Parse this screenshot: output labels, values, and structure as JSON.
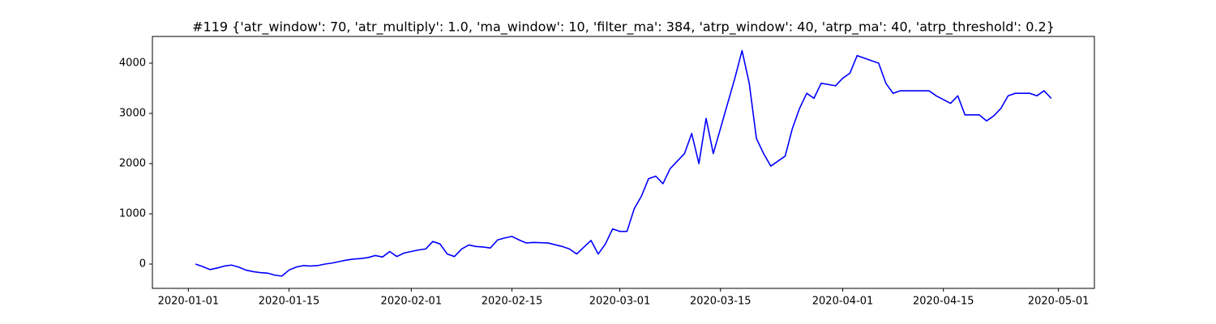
{
  "chart_data": {
    "type": "line",
    "title": "#119 {'atr_window': 70, 'atr_multiply': 1.0, 'ma_window': 10, 'filter_ma': 384, 'atrp_window': 40, 'atrp_ma': 40, 'atrp_threshold': 0.2}",
    "x": [
      "2020-01-02",
      "2020-01-03",
      "2020-01-04",
      "2020-01-05",
      "2020-01-06",
      "2020-01-07",
      "2020-01-08",
      "2020-01-09",
      "2020-01-10",
      "2020-01-11",
      "2020-01-12",
      "2020-01-13",
      "2020-01-14",
      "2020-01-15",
      "2020-01-16",
      "2020-01-17",
      "2020-01-18",
      "2020-01-19",
      "2020-01-20",
      "2020-01-21",
      "2020-01-22",
      "2020-01-23",
      "2020-01-24",
      "2020-01-25",
      "2020-01-26",
      "2020-01-27",
      "2020-01-28",
      "2020-01-29",
      "2020-01-30",
      "2020-01-31",
      "2020-02-01",
      "2020-02-02",
      "2020-02-03",
      "2020-02-04",
      "2020-02-05",
      "2020-02-06",
      "2020-02-07",
      "2020-02-08",
      "2020-02-09",
      "2020-02-10",
      "2020-02-11",
      "2020-02-12",
      "2020-02-13",
      "2020-02-14",
      "2020-02-15",
      "2020-02-16",
      "2020-02-17",
      "2020-02-18",
      "2020-02-20",
      "2020-02-22",
      "2020-02-23",
      "2020-02-24",
      "2020-02-26",
      "2020-02-27",
      "2020-02-28",
      "2020-02-29",
      "2020-03-01",
      "2020-03-02",
      "2020-03-03",
      "2020-03-04",
      "2020-03-05",
      "2020-03-06",
      "2020-03-07",
      "2020-03-08",
      "2020-03-10",
      "2020-03-11",
      "2020-03-12",
      "2020-03-13",
      "2020-03-14",
      "2020-03-17",
      "2020-03-18",
      "2020-03-19",
      "2020-03-20",
      "2020-03-21",
      "2020-03-22",
      "2020-03-24",
      "2020-03-25",
      "2020-03-26",
      "2020-03-27",
      "2020-03-28",
      "2020-03-29",
      "2020-03-31",
      "2020-04-01",
      "2020-04-02",
      "2020-04-03",
      "2020-04-04",
      "2020-04-06",
      "2020-04-07",
      "2020-04-08",
      "2020-04-09",
      "2020-04-13",
      "2020-04-14",
      "2020-04-16",
      "2020-04-17",
      "2020-04-18",
      "2020-04-20",
      "2020-04-21",
      "2020-04-22",
      "2020-04-23",
      "2020-04-24",
      "2020-04-25",
      "2020-04-27",
      "2020-04-28",
      "2020-04-29",
      "2020-04-30"
    ],
    "series": [
      {
        "color": "#0000ff",
        "values": [
          0,
          -50,
          -110,
          -80,
          -40,
          -20,
          -60,
          -120,
          -150,
          -170,
          -180,
          -220,
          -240,
          -120,
          -60,
          -30,
          -40,
          -30,
          0,
          20,
          50,
          80,
          100,
          110,
          130,
          170,
          140,
          250,
          150,
          220,
          250,
          280,
          300,
          450,
          400,
          200,
          150,
          300,
          380,
          350,
          340,
          320,
          480,
          520,
          550,
          480,
          420,
          430,
          420,
          350,
          300,
          200,
          470,
          200,
          400,
          700,
          650,
          650,
          1100,
          1350,
          1700,
          1750,
          1600,
          1900,
          2200,
          2600,
          2000,
          2900,
          2200,
          3700,
          4250,
          3600,
          2500,
          2200,
          1950,
          2150,
          2700,
          3100,
          3400,
          3300,
          3600,
          3550,
          3700,
          3800,
          4150,
          4100,
          4000,
          3600,
          3400,
          3450,
          3450,
          3350,
          3200,
          3350,
          2970,
          2970,
          2850,
          2950,
          3100,
          3350,
          3400,
          3400,
          3350,
          3450,
          3300
        ]
      }
    ],
    "xlim": [
      "2019-12-27",
      "2020-05-06"
    ],
    "xticks": [
      "2020-01-01",
      "2020-01-15",
      "2020-02-01",
      "2020-02-15",
      "2020-03-01",
      "2020-03-15",
      "2020-04-01",
      "2020-04-15",
      "2020-05-01"
    ],
    "ylim": [
      -484,
      4532
    ],
    "yticks": [
      0,
      1000,
      2000,
      3000,
      4000
    ]
  }
}
